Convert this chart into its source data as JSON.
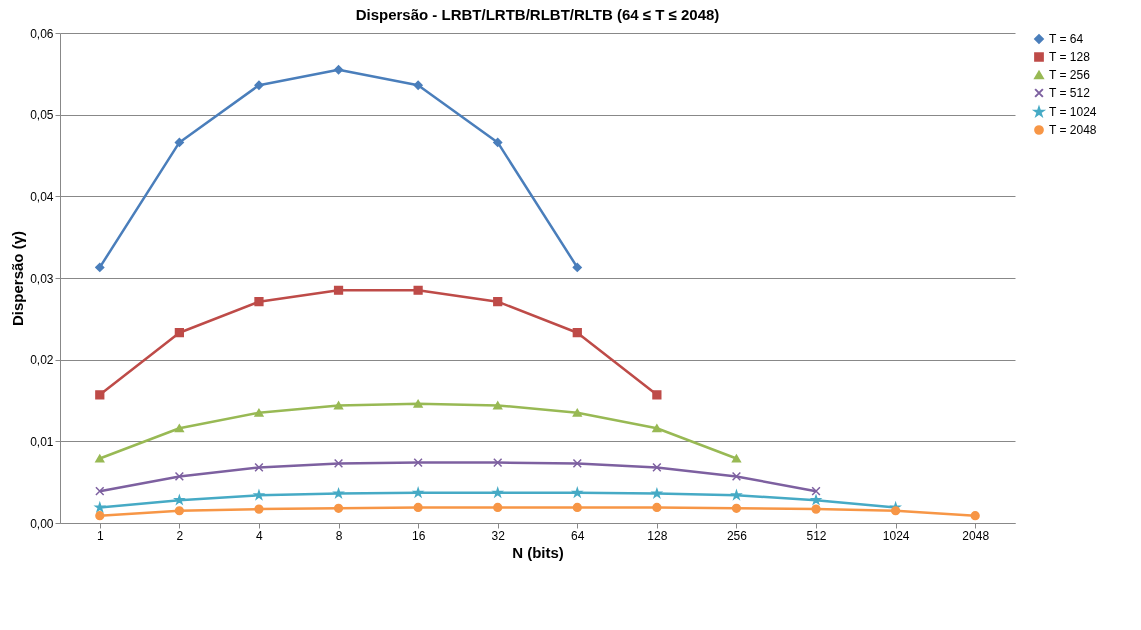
{
  "chart_data": {
    "type": "line",
    "title": "Dispersão - LRBT/LRTB/RLBT/RLTB (64 ≤ T ≤ 2048)",
    "xlabel": "N (bits)",
    "ylabel": "Dispersão (γ)",
    "categories": [
      "1",
      "2",
      "4",
      "8",
      "16",
      "32",
      "64",
      "128",
      "256",
      "512",
      "1024",
      "2048"
    ],
    "ylim": [
      0,
      0.06
    ],
    "yticks": [
      {
        "value": 0,
        "label": "0,00"
      },
      {
        "value": 0.01,
        "label": "0,01"
      },
      {
        "value": 0.02,
        "label": "0,02"
      },
      {
        "value": 0.03,
        "label": "0,03"
      },
      {
        "value": 0.04,
        "label": "0,04"
      },
      {
        "value": 0.05,
        "label": "0,05"
      },
      {
        "value": 0.06,
        "label": "0,06"
      }
    ],
    "grid": "y",
    "legend": "right",
    "series": [
      {
        "name": "T = 64",
        "color": "#4a7ebb",
        "marker": "diamond",
        "values": [
          0.0313,
          0.0466,
          0.0536,
          0.0555,
          0.0536,
          0.0466,
          0.0313,
          null,
          null,
          null,
          null,
          null
        ]
      },
      {
        "name": "T = 128",
        "color": "#be4b48",
        "marker": "square",
        "values": [
          0.0157,
          0.0233,
          0.0271,
          0.0285,
          0.0285,
          0.0271,
          0.0233,
          0.0157,
          null,
          null,
          null,
          null
        ]
      },
      {
        "name": "T = 256",
        "color": "#98b954",
        "marker": "triangle",
        "values": [
          0.0079,
          0.0116,
          0.0135,
          0.0144,
          0.0146,
          0.0144,
          0.0135,
          0.0116,
          0.0079,
          null,
          null,
          null
        ]
      },
      {
        "name": "T = 512",
        "color": "#7d60a0",
        "marker": "cross",
        "values": [
          0.0039,
          0.0057,
          0.0068,
          0.0073,
          0.0074,
          0.0074,
          0.0073,
          0.0068,
          0.0057,
          0.0039,
          null,
          null
        ]
      },
      {
        "name": "T = 1024",
        "color": "#46aac5",
        "marker": "star",
        "values": [
          0.0019,
          0.0028,
          0.0034,
          0.0036,
          0.0037,
          0.0037,
          0.0037,
          0.0036,
          0.0034,
          0.0028,
          0.0019,
          null
        ]
      },
      {
        "name": "T = 2048",
        "color": "#f79646",
        "marker": "circle",
        "values": [
          0.0009,
          0.0015,
          0.0017,
          0.0018,
          0.0019,
          0.0019,
          0.0019,
          0.0019,
          0.0018,
          0.0017,
          0.0015,
          0.0009
        ]
      }
    ]
  }
}
